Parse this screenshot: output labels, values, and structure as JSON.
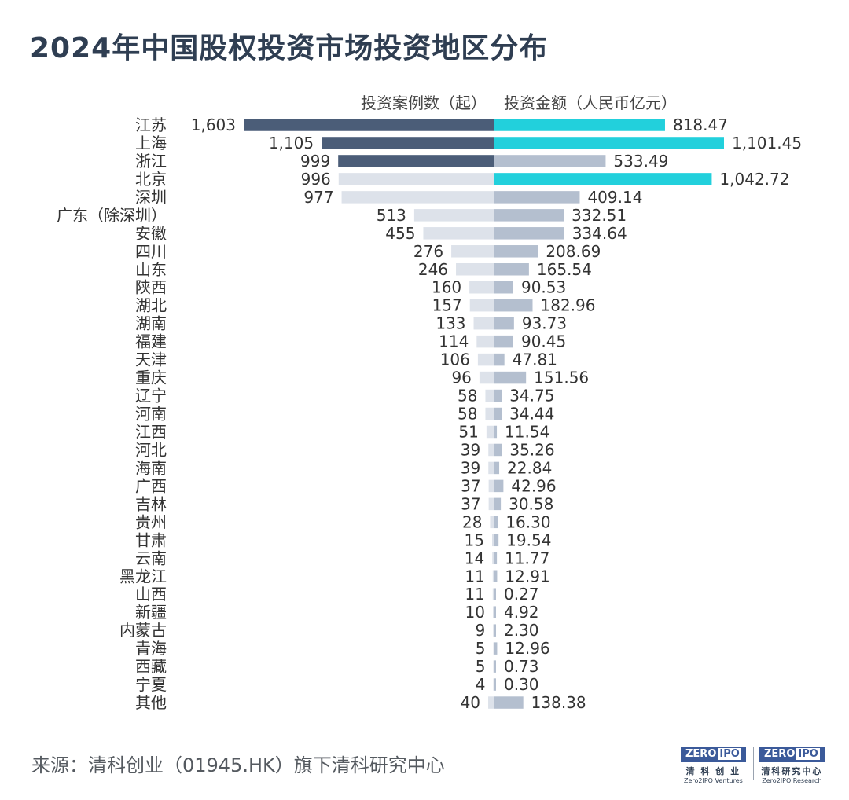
{
  "title": "2024年中国股权投资市场投资地区分布",
  "source": "来源：清科创业（01945.HK）旗下清科研究中心",
  "logos": [
    {
      "mark": "ZERO",
      "mark2": "IPO",
      "cn": "清 科 创 业",
      "en": "Zero2IPO Ventures"
    },
    {
      "mark": "ZERO",
      "mark2": "IPO",
      "cn": "清科研究中心",
      "en": "Zero2IPO Research"
    }
  ],
  "colors": {
    "highlight_left": "#4b5d78",
    "normal_left": "#dde2ea",
    "highlight_right": "#22d0dc",
    "normal_right": "#b4bfcf",
    "text": "#333333"
  },
  "chart_data": {
    "type": "bar",
    "layout": "butterfly",
    "categories": [
      "江苏",
      "上海",
      "浙江",
      "北京",
      "深圳",
      "广东（除深圳）",
      "安徽",
      "四川",
      "山东",
      "陕西",
      "湖北",
      "湖南",
      "福建",
      "天津",
      "重庆",
      "辽宁",
      "河南",
      "江西",
      "河北",
      "海南",
      "广西",
      "吉林",
      "贵州",
      "甘肃",
      "云南",
      "黑龙江",
      "山西",
      "新疆",
      "内蒙古",
      "青海",
      "西藏",
      "宁夏",
      "其他"
    ],
    "series": [
      {
        "name": "投资案例数（起）",
        "values": [
          1603,
          1105,
          999,
          996,
          977,
          513,
          455,
          276,
          246,
          160,
          157,
          133,
          114,
          106,
          96,
          58,
          58,
          51,
          39,
          39,
          37,
          37,
          28,
          15,
          14,
          11,
          11,
          10,
          9,
          5,
          5,
          4,
          40
        ],
        "labels": [
          "1,603",
          "1,105",
          "999",
          "996",
          "977",
          "513",
          "455",
          "276",
          "246",
          "160",
          "157",
          "133",
          "114",
          "106",
          "96",
          "58",
          "58",
          "51",
          "39",
          "39",
          "37",
          "37",
          "28",
          "15",
          "14",
          "11",
          "11",
          "10",
          "9",
          "5",
          "5",
          "4",
          "40"
        ],
        "highlight": [
          true,
          true,
          true,
          false,
          false,
          false,
          false,
          false,
          false,
          false,
          false,
          false,
          false,
          false,
          false,
          false,
          false,
          false,
          false,
          false,
          false,
          false,
          false,
          false,
          false,
          false,
          false,
          false,
          false,
          false,
          false,
          false,
          false
        ]
      },
      {
        "name": "投资金额（人民币亿元）",
        "values": [
          818.47,
          1101.45,
          533.49,
          1042.72,
          409.14,
          332.51,
          334.64,
          208.69,
          165.54,
          90.53,
          182.96,
          93.73,
          90.45,
          47.81,
          151.56,
          34.75,
          34.44,
          11.54,
          35.26,
          22.84,
          42.96,
          30.58,
          16.3,
          19.54,
          11.77,
          12.91,
          0.27,
          4.92,
          2.3,
          12.96,
          0.73,
          0.3,
          138.38
        ],
        "labels": [
          "818.47",
          "1,101.45",
          "533.49",
          "1,042.72",
          "409.14",
          "332.51",
          "334.64",
          "208.69",
          "165.54",
          "90.53",
          "182.96",
          "93.73",
          "90.45",
          "47.81",
          "151.56",
          "34.75",
          "34.44",
          "11.54",
          "35.26",
          "22.84",
          "42.96",
          "30.58",
          "16.30",
          "19.54",
          "11.77",
          "12.91",
          "0.27",
          "4.92",
          "2.30",
          "12.96",
          "0.73",
          "0.30",
          "138.38"
        ],
        "highlight": [
          true,
          true,
          false,
          true,
          false,
          false,
          false,
          false,
          false,
          false,
          false,
          false,
          false,
          false,
          false,
          false,
          false,
          false,
          false,
          false,
          false,
          false,
          false,
          false,
          false,
          false,
          false,
          false,
          false,
          false,
          false,
          false,
          false
        ]
      }
    ]
  }
}
